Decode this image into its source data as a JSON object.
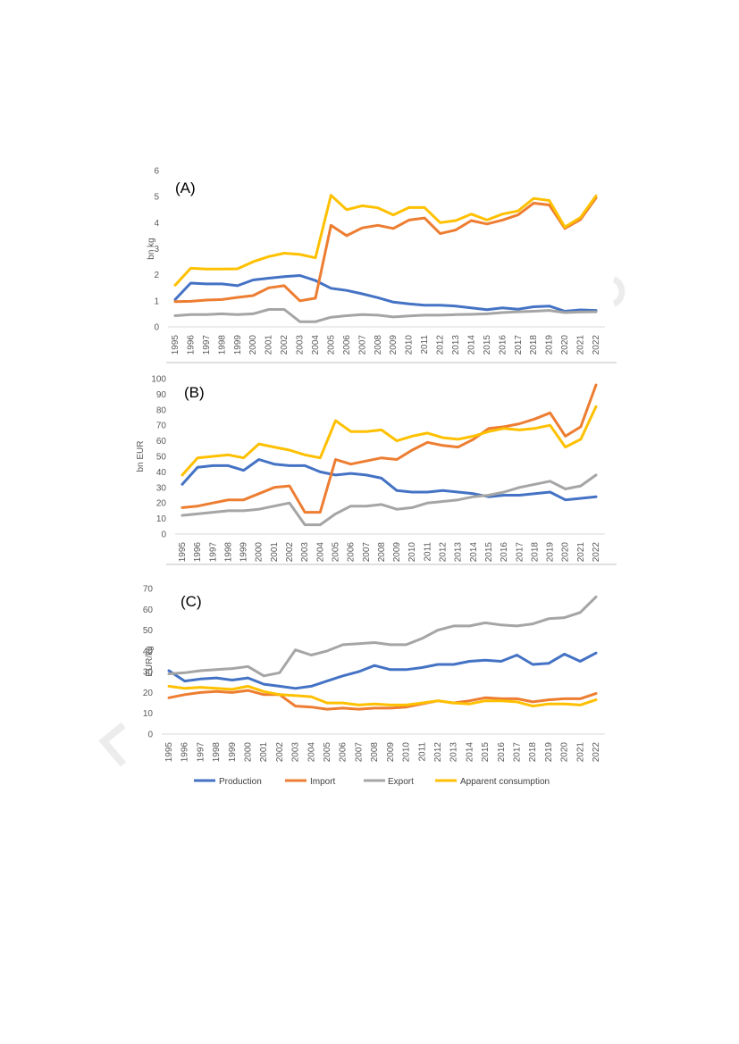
{
  "chart_data": [
    {
      "type": "line",
      "title": "",
      "panel_label": "(A)",
      "ylabel": "bn kg",
      "xlabel": "",
      "ylim": [
        0,
        6
      ],
      "yticks": [
        0,
        1,
        2,
        3,
        4,
        5,
        6
      ],
      "grid": false,
      "categories": [
        "1995",
        "1996",
        "1997",
        "1998",
        "1999",
        "2000",
        "2001",
        "2002",
        "2003",
        "2004",
        "2005",
        "2006",
        "2007",
        "2008",
        "2009",
        "2010",
        "2011",
        "2012",
        "2013",
        "2014",
        "2015",
        "2016",
        "2017",
        "2018",
        "2019",
        "2020",
        "2021",
        "2022"
      ],
      "series": [
        {
          "name": "Production",
          "color": "#4472C4",
          "values": [
            1.05,
            1.68,
            1.65,
            1.65,
            1.58,
            1.8,
            1.87,
            1.93,
            1.97,
            1.78,
            1.48,
            1.4,
            1.27,
            1.12,
            0.95,
            0.88,
            0.83,
            0.83,
            0.8,
            0.73,
            0.66,
            0.73,
            0.68,
            0.77,
            0.8,
            0.6,
            0.65,
            0.63
          ]
        },
        {
          "name": "Import",
          "color": "#ED7D31",
          "values": [
            0.97,
            0.98,
            1.03,
            1.05,
            1.13,
            1.2,
            1.5,
            1.58,
            1.0,
            1.1,
            3.9,
            3.5,
            3.8,
            3.9,
            3.78,
            4.1,
            4.18,
            3.58,
            3.72,
            4.08,
            3.95,
            4.1,
            4.3,
            4.75,
            4.68,
            3.78,
            4.12,
            4.95
          ]
        },
        {
          "name": "Export",
          "color": "#A5A5A5",
          "values": [
            0.43,
            0.47,
            0.47,
            0.5,
            0.47,
            0.5,
            0.67,
            0.67,
            0.2,
            0.2,
            0.37,
            0.43,
            0.47,
            0.45,
            0.38,
            0.42,
            0.45,
            0.45,
            0.47,
            0.48,
            0.5,
            0.55,
            0.58,
            0.6,
            0.63,
            0.55,
            0.57,
            0.58
          ]
        },
        {
          "name": "Apparent consumption",
          "color": "#FFC000",
          "values": [
            1.6,
            2.25,
            2.22,
            2.22,
            2.23,
            2.5,
            2.7,
            2.83,
            2.78,
            2.65,
            5.05,
            4.5,
            4.65,
            4.57,
            4.3,
            4.58,
            4.58,
            4.0,
            4.08,
            4.33,
            4.1,
            4.33,
            4.45,
            4.93,
            4.85,
            3.83,
            4.2,
            5.03
          ]
        }
      ]
    },
    {
      "type": "line",
      "title": "",
      "panel_label": "(B)",
      "ylabel": "bn EUR",
      "xlabel": "",
      "ylim": [
        0,
        100
      ],
      "yticks": [
        0,
        10,
        20,
        30,
        40,
        50,
        60,
        70,
        80,
        90,
        100
      ],
      "grid": false,
      "categories": [
        "1995",
        "1996",
        "1997",
        "1998",
        "1999",
        "2000",
        "2001",
        "2002",
        "2003",
        "2004",
        "2005",
        "2006",
        "2007",
        "2008",
        "2009",
        "2010",
        "2011",
        "2012",
        "2013",
        "2014",
        "2015",
        "2016",
        "2017",
        "2018",
        "2019",
        "2020",
        "2021",
        "2022"
      ],
      "series": [
        {
          "name": "Production",
          "color": "#4472C4",
          "values": [
            32,
            43,
            44,
            44,
            41,
            48,
            45,
            44,
            44,
            40,
            38,
            39,
            38,
            36,
            28,
            27,
            27,
            28,
            27,
            26,
            24,
            25,
            25,
            26,
            27,
            22,
            23,
            24
          ]
        },
        {
          "name": "Import",
          "color": "#ED7D31",
          "values": [
            17,
            18,
            20,
            22,
            22,
            26,
            30,
            31,
            14,
            14,
            48,
            45,
            47,
            49,
            48,
            54,
            59,
            57,
            56,
            61,
            68,
            69,
            71,
            74,
            78,
            63,
            69,
            96
          ]
        },
        {
          "name": "Export",
          "color": "#A5A5A5",
          "values": [
            12,
            13,
            14,
            15,
            15,
            16,
            18,
            20,
            6,
            6,
            13,
            18,
            18,
            19,
            16,
            17,
            20,
            21,
            22,
            24,
            25,
            27,
            30,
            32,
            34,
            29,
            31,
            38
          ]
        },
        {
          "name": "Apparent consumption",
          "color": "#FFC000",
          "values": [
            38,
            49,
            50,
            51,
            49,
            58,
            56,
            54,
            51,
            49,
            73,
            66,
            66,
            67,
            60,
            63,
            65,
            62,
            61,
            63,
            66,
            68,
            67,
            68,
            70,
            56,
            61,
            82
          ]
        }
      ]
    },
    {
      "type": "line",
      "title": "",
      "panel_label": "(C)",
      "ylabel": "EUR/kg",
      "xlabel": "",
      "ylim": [
        0,
        70
      ],
      "yticks": [
        0,
        10,
        20,
        30,
        40,
        50,
        60,
        70
      ],
      "grid": false,
      "legend": "bottom",
      "categories": [
        "1995",
        "1996",
        "1997",
        "1998",
        "1999",
        "2000",
        "2001",
        "2002",
        "2003",
        "2004",
        "2005",
        "2006",
        "2007",
        "2008",
        "2009",
        "2010",
        "2011",
        "2012",
        "2013",
        "2014",
        "2015",
        "2016",
        "2017",
        "2018",
        "2019",
        "2020",
        "2021",
        "2022"
      ],
      "series": [
        {
          "name": "Production",
          "color": "#4472C4",
          "values": [
            30.5,
            25.5,
            26.5,
            27,
            26,
            27,
            24,
            23,
            22,
            23,
            25.5,
            28,
            30,
            33,
            31,
            31,
            32,
            33.5,
            33.5,
            35,
            35.5,
            35,
            38,
            33.5,
            34,
            38.5,
            35,
            39
          ]
        },
        {
          "name": "Import",
          "color": "#ED7D31",
          "values": [
            17.5,
            19,
            20,
            20.5,
            20,
            21,
            19,
            19,
            13.5,
            13,
            12,
            12.5,
            12,
            12.5,
            12.5,
            13,
            14.5,
            16,
            15,
            16,
            17.5,
            17,
            17,
            15.5,
            16.5,
            17,
            17,
            19.5
          ]
        },
        {
          "name": "Export",
          "color": "#A5A5A5",
          "values": [
            29,
            29.5,
            30.5,
            31,
            31.5,
            32.5,
            28,
            29.5,
            40.5,
            38,
            40,
            43,
            43.5,
            44,
            43,
            43,
            46,
            50,
            52,
            52,
            53.5,
            52.5,
            52,
            53,
            55.5,
            56,
            58.5,
            66
          ]
        },
        {
          "name": "Apparent consumption",
          "color": "#FFC000",
          "values": [
            23,
            22,
            22.5,
            22,
            21.5,
            23,
            20.5,
            19,
            18.5,
            18,
            15,
            15,
            14,
            14.5,
            14,
            14,
            15,
            16,
            15,
            14.5,
            16,
            16,
            15.5,
            13.5,
            14.5,
            14.5,
            14,
            16.5
          ]
        }
      ]
    }
  ]
}
